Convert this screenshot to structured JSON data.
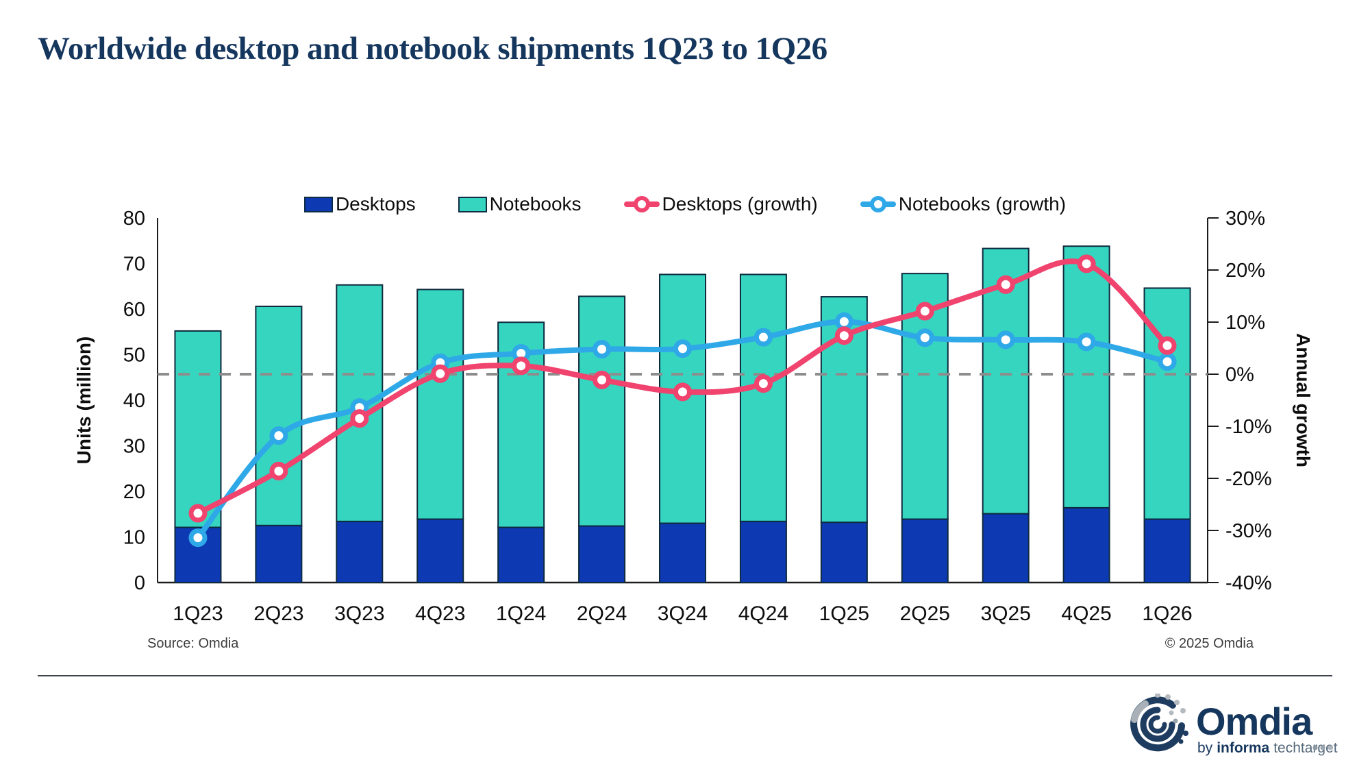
{
  "title": "Worldwide desktop and notebook shipments 1Q23 to 1Q26",
  "legend": [
    {
      "label": "Desktops",
      "type": "bar",
      "color": "#0d3ab3"
    },
    {
      "label": "Notebooks",
      "type": "bar",
      "color": "#36d5bf"
    },
    {
      "label": "Desktops (growth)",
      "type": "line",
      "color": "#f0436e"
    },
    {
      "label": "Notebooks (growth)",
      "type": "line",
      "color": "#2fa8e8"
    }
  ],
  "chart_data": {
    "type": "combo-stacked-bar-line",
    "categories": [
      "1Q23",
      "2Q23",
      "3Q23",
      "4Q23",
      "1Q24",
      "2Q24",
      "3Q24",
      "4Q24",
      "1Q25",
      "2Q25",
      "3Q25",
      "4Q25",
      "1Q26"
    ],
    "series": [
      {
        "name": "Desktops",
        "type": "bar",
        "axis": "left",
        "color": "#0d3ab3",
        "values": [
          12.1,
          12.5,
          13.4,
          13.9,
          12.1,
          12.4,
          13.0,
          13.4,
          13.2,
          13.9,
          15.1,
          16.4,
          13.9
        ]
      },
      {
        "name": "Notebooks",
        "type": "bar",
        "axis": "left",
        "color": "#36d5bf",
        "values": [
          43.1,
          48.1,
          51.9,
          50.4,
          45.0,
          50.4,
          54.6,
          54.2,
          49.5,
          53.9,
          58.2,
          57.4,
          50.7
        ]
      },
      {
        "name": "Desktops (growth)",
        "type": "line",
        "axis": "right",
        "color": "#f0436e",
        "values": [
          -26.7,
          -18.6,
          -8.5,
          0.1,
          1.6,
          -1.1,
          -3.4,
          -1.8,
          7.4,
          12.1,
          17.2,
          21.2,
          5.5
        ]
      },
      {
        "name": "Notebooks (growth)",
        "type": "line",
        "axis": "right",
        "color": "#2fa8e8",
        "values": [
          -31.4,
          -11.8,
          -6.4,
          2.2,
          4.0,
          4.8,
          4.9,
          7.1,
          10.1,
          7.0,
          6.6,
          6.2,
          2.4
        ]
      }
    ],
    "left_axis": {
      "label": "Units (million)",
      "min": 0,
      "max": 80,
      "step": 10
    },
    "right_axis": {
      "label": "Annual growth",
      "min": -40,
      "max": 30,
      "step": 10,
      "format": "percent"
    },
    "zero_line": {
      "axis": "right",
      "value": 0,
      "style": "dashed",
      "color": "#8d8d8d"
    },
    "bar_outline": "#0e2a3d",
    "legend_position": "top",
    "grid": "off"
  },
  "footer": {
    "source": "Source: Omdia",
    "copyright": "© 2025 Omdia"
  },
  "logo": {
    "name": "Omdia",
    "by": "by",
    "informa": "informa",
    "techtarget": "techtarget"
  }
}
